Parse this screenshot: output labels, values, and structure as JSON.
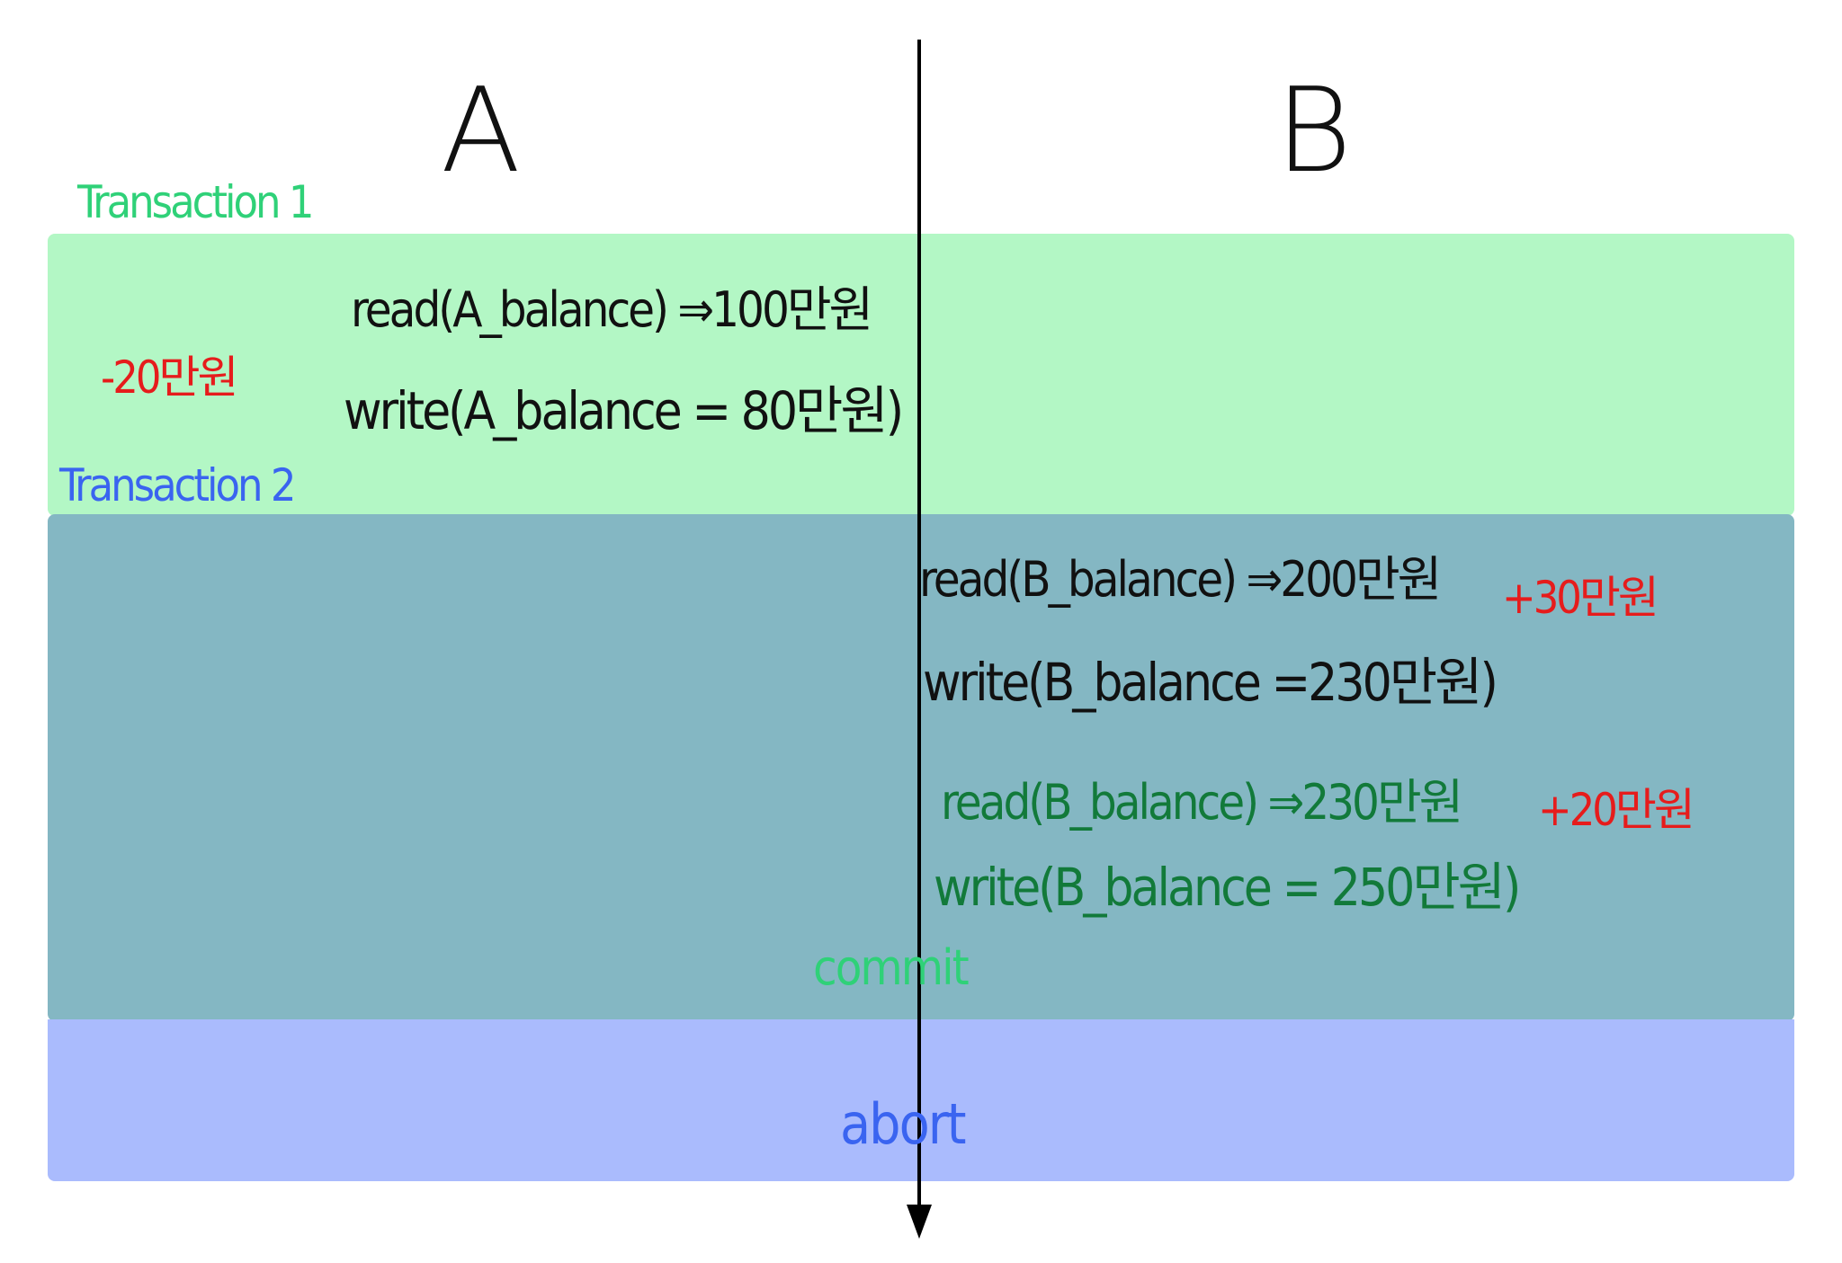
{
  "columns": {
    "a": "A",
    "b": "B"
  },
  "transactions": {
    "t1": {
      "label": "Transaction 1",
      "color": "#b3f7c5",
      "label_color": "#2fd178"
    },
    "t2": {
      "label": "Transaction 2",
      "color": "#84b7c3",
      "label_color": "#3a64f0"
    },
    "abort_region_color": "#aabbfd"
  },
  "steps": {
    "a_read": "read(A_balance) ⇒100만원",
    "a_write": "write(A_balance = 80만원)",
    "a_delta": "-20만원",
    "b_read": "read(B_balance) ⇒200만원",
    "b_write": "write(B_balance =230만원)",
    "b_delta1": "+30만원",
    "b_read2": "read(B_balance) ⇒230만원",
    "b_write2": "write(B_balance = 250만원)",
    "b_delta2": "+20만원"
  },
  "events": {
    "commit": "commit",
    "abort": "abort"
  },
  "colors": {
    "text": "#111111",
    "delta": "#e61c1c",
    "t2_ops": "#127a3a"
  }
}
